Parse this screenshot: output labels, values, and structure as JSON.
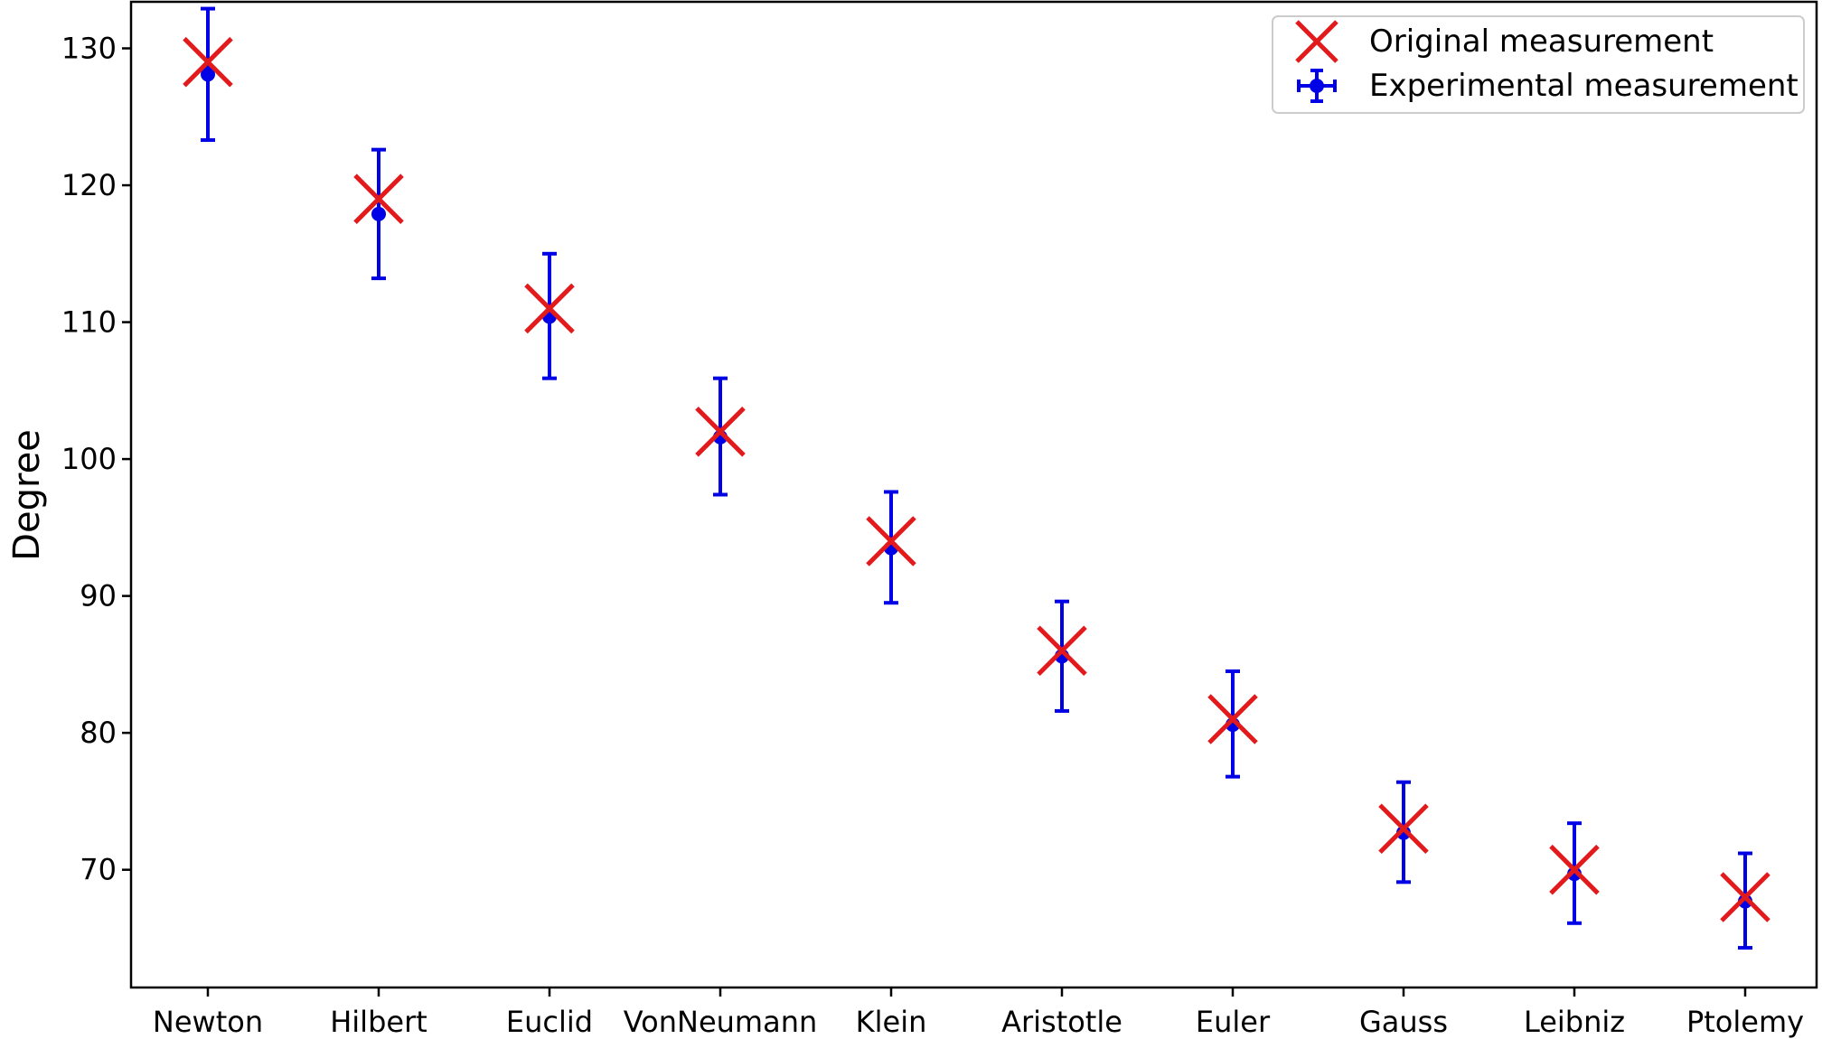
{
  "chart_data": {
    "type": "scatter",
    "title": "",
    "xlabel": "",
    "ylabel": "Degree",
    "categories": [
      "Newton",
      "Hilbert",
      "Euclid",
      "VonNeumann",
      "Klein",
      "Aristotle",
      "Euler",
      "Gauss",
      "Leibniz",
      "Ptolemy"
    ],
    "ylim": [
      61.4,
      133.4
    ],
    "yticks": [
      70,
      80,
      90,
      100,
      110,
      120,
      130
    ],
    "grid": false,
    "legend_position": "top-right",
    "series": [
      {
        "name": "Original measurement",
        "marker": "x",
        "color": "#e31a1c",
        "values": [
          129.0,
          119.0,
          111.0,
          102.0,
          94.0,
          86.0,
          81.0,
          73.0,
          70.0,
          68.0
        ]
      },
      {
        "name": "Experimental measurement",
        "marker": "o",
        "color": "#0000e6",
        "values": [
          128.1,
          117.9,
          110.4,
          101.6,
          93.5,
          85.6,
          80.6,
          72.7,
          69.7,
          67.7
        ],
        "error_low": [
          123.3,
          113.2,
          105.9,
          97.4,
          89.5,
          81.6,
          76.8,
          69.1,
          66.1,
          64.3
        ],
        "error_high": [
          132.9,
          122.6,
          115.0,
          105.9,
          97.6,
          89.6,
          84.5,
          76.4,
          73.4,
          71.2
        ]
      }
    ]
  }
}
